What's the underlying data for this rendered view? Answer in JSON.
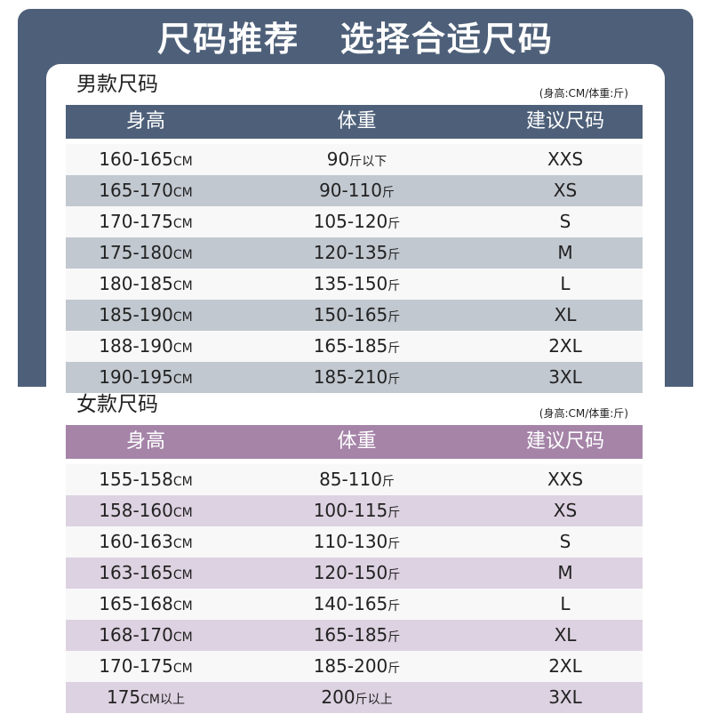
{
  "title": "尺码推荐   选择合适尺码",
  "men": {
    "title": "男款尺码",
    "unit_note": "(身高:CM/体重:斤)",
    "headers": [
      "身高",
      "体重",
      "建议尺码"
    ],
    "rows": [
      {
        "height": "160-165",
        "height_unit": "CM",
        "weight": "90",
        "weight_unit": "斤以下",
        "size": "XXS"
      },
      {
        "height": "165-170",
        "height_unit": "CM",
        "weight": "90-110",
        "weight_unit": "斤",
        "size": "XS"
      },
      {
        "height": "170-175",
        "height_unit": "CM",
        "weight": "105-120",
        "weight_unit": "斤",
        "size": "S"
      },
      {
        "height": "175-180",
        "height_unit": "CM",
        "weight": "120-135",
        "weight_unit": "斤",
        "size": "M"
      },
      {
        "height": "180-185",
        "height_unit": "CM",
        "weight": "135-150",
        "weight_unit": "斤",
        "size": "L"
      },
      {
        "height": "185-190",
        "height_unit": "CM",
        "weight": "150-165",
        "weight_unit": "斤",
        "size": "XL"
      },
      {
        "height": "188-190",
        "height_unit": "CM",
        "weight": "165-185",
        "weight_unit": "斤",
        "size": "2XL"
      },
      {
        "height": "190-195",
        "height_unit": "CM",
        "weight": "185-210",
        "weight_unit": "斤",
        "size": "3XL"
      }
    ]
  },
  "women": {
    "title": "女款尺码",
    "unit_note": "(身高:CM/体重:斤)",
    "headers": [
      "身高",
      "体重",
      "建议尺码"
    ],
    "rows": [
      {
        "height": "155-158",
        "height_unit": "CM",
        "weight": "85-110",
        "weight_unit": "斤",
        "size": "XXS"
      },
      {
        "height": "158-160",
        "height_unit": "CM",
        "weight": "100-115",
        "weight_unit": "斤",
        "size": "XS"
      },
      {
        "height": "160-163",
        "height_unit": "CM",
        "weight": "110-130",
        "weight_unit": "斤",
        "size": "S"
      },
      {
        "height": "163-165",
        "height_unit": "CM",
        "weight": "120-150",
        "weight_unit": "斤",
        "size": "M"
      },
      {
        "height": "165-168",
        "height_unit": "CM",
        "weight": "140-165",
        "weight_unit": "斤",
        "size": "L"
      },
      {
        "height": "168-170",
        "height_unit": "CM",
        "weight": "165-185",
        "weight_unit": "斤",
        "size": "XL"
      },
      {
        "height": "170-175",
        "height_unit": "CM",
        "weight": "185-200",
        "weight_unit": "斤",
        "size": "2XL"
      },
      {
        "height": "175",
        "height_unit": "CM以上",
        "weight": "200",
        "weight_unit": "斤以上",
        "size": "3XL"
      }
    ]
  },
  "colors": {
    "men_header": "#4e6079",
    "men_stripe": "#c2c8d0",
    "women_header": "#a584a8",
    "women_stripe": "#ddd2e1",
    "row_light": "#f8f8f8"
  }
}
